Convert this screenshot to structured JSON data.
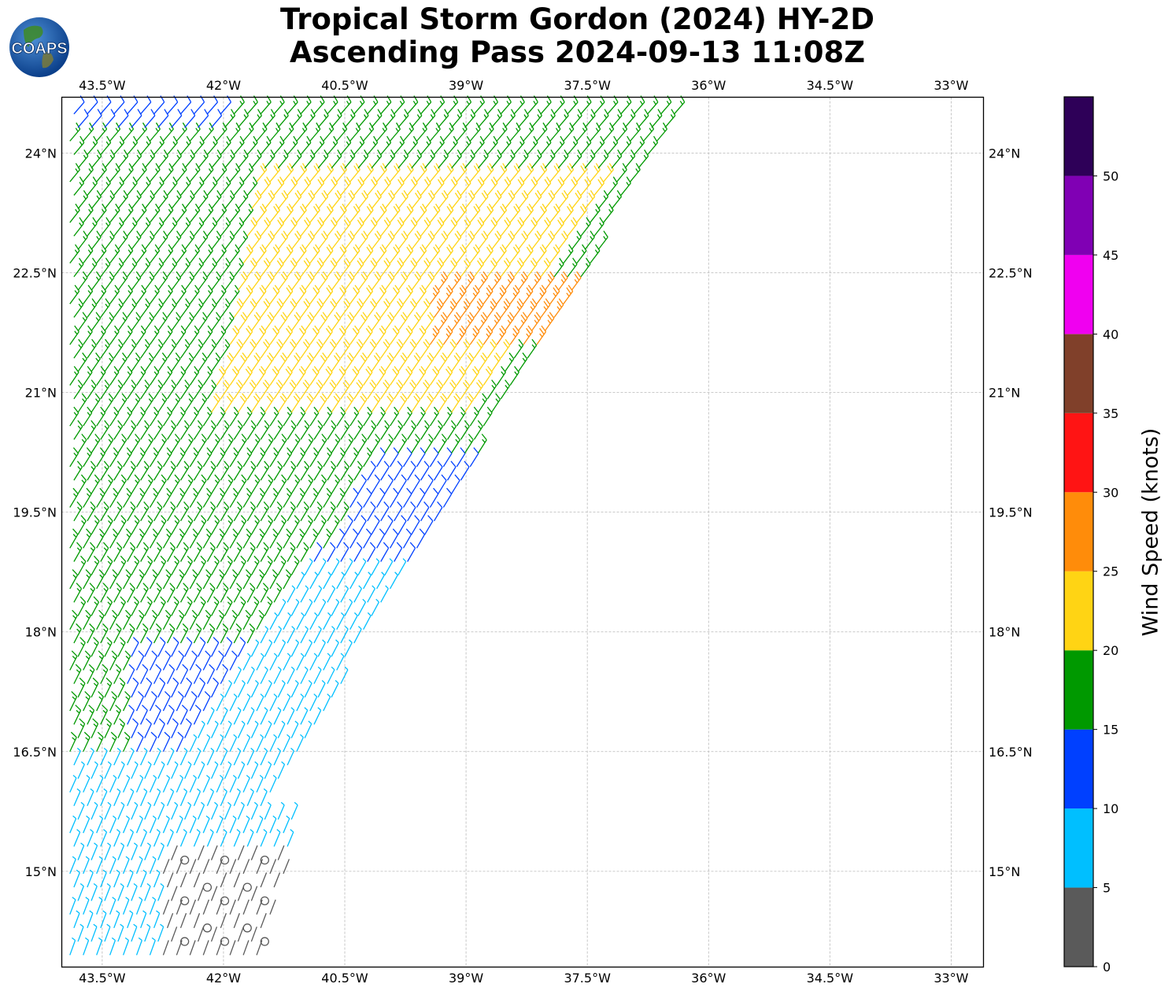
{
  "title": {
    "line1": "Tropical Storm Gordon (2024) HY-2D",
    "line2": "Ascending Pass 2024-09-13 11:08Z"
  },
  "logo": {
    "text": "COAPS",
    "icon": "globe-logo-icon"
  },
  "map": {
    "lon_range": [
      -44.0,
      -32.6
    ],
    "lat_range": [
      13.8,
      24.7
    ],
    "lon_ticks": [
      -43.5,
      -42.0,
      -40.5,
      -39.0,
      -37.5,
      -36.0,
      -34.5,
      -33.0
    ],
    "lon_labels": [
      "43.5°W",
      "42°W",
      "40.5°W",
      "39°W",
      "37.5°W",
      "36°W",
      "34.5°W",
      "33°W"
    ],
    "lat_ticks": [
      24.0,
      22.5,
      21.0,
      19.5,
      18.0,
      16.5,
      15.0
    ],
    "lat_labels": [
      "24°N",
      "22.5°N",
      "21°N",
      "19.5°N",
      "18°N",
      "16.5°N",
      "15°N"
    ],
    "grid": true,
    "content": "wind barbs from ascending scatterometer pass covering western part of domain"
  },
  "colorbar": {
    "label": "Wind Speed (knots)",
    "bounds": [
      0,
      5,
      10,
      15,
      20,
      25,
      30,
      35,
      40,
      45,
      50,
      55
    ],
    "tick_labels": [
      "0",
      "5",
      "10",
      "15",
      "20",
      "25",
      "30",
      "35",
      "40",
      "45",
      "50"
    ],
    "colors": [
      "#5a5a5a",
      "#00bfff",
      "#0040ff",
      "#009900",
      "#ffd414",
      "#ff8c0a",
      "#ff1414",
      "#80402a",
      "#f000f0",
      "#8000b4",
      "#2e0058"
    ]
  }
}
